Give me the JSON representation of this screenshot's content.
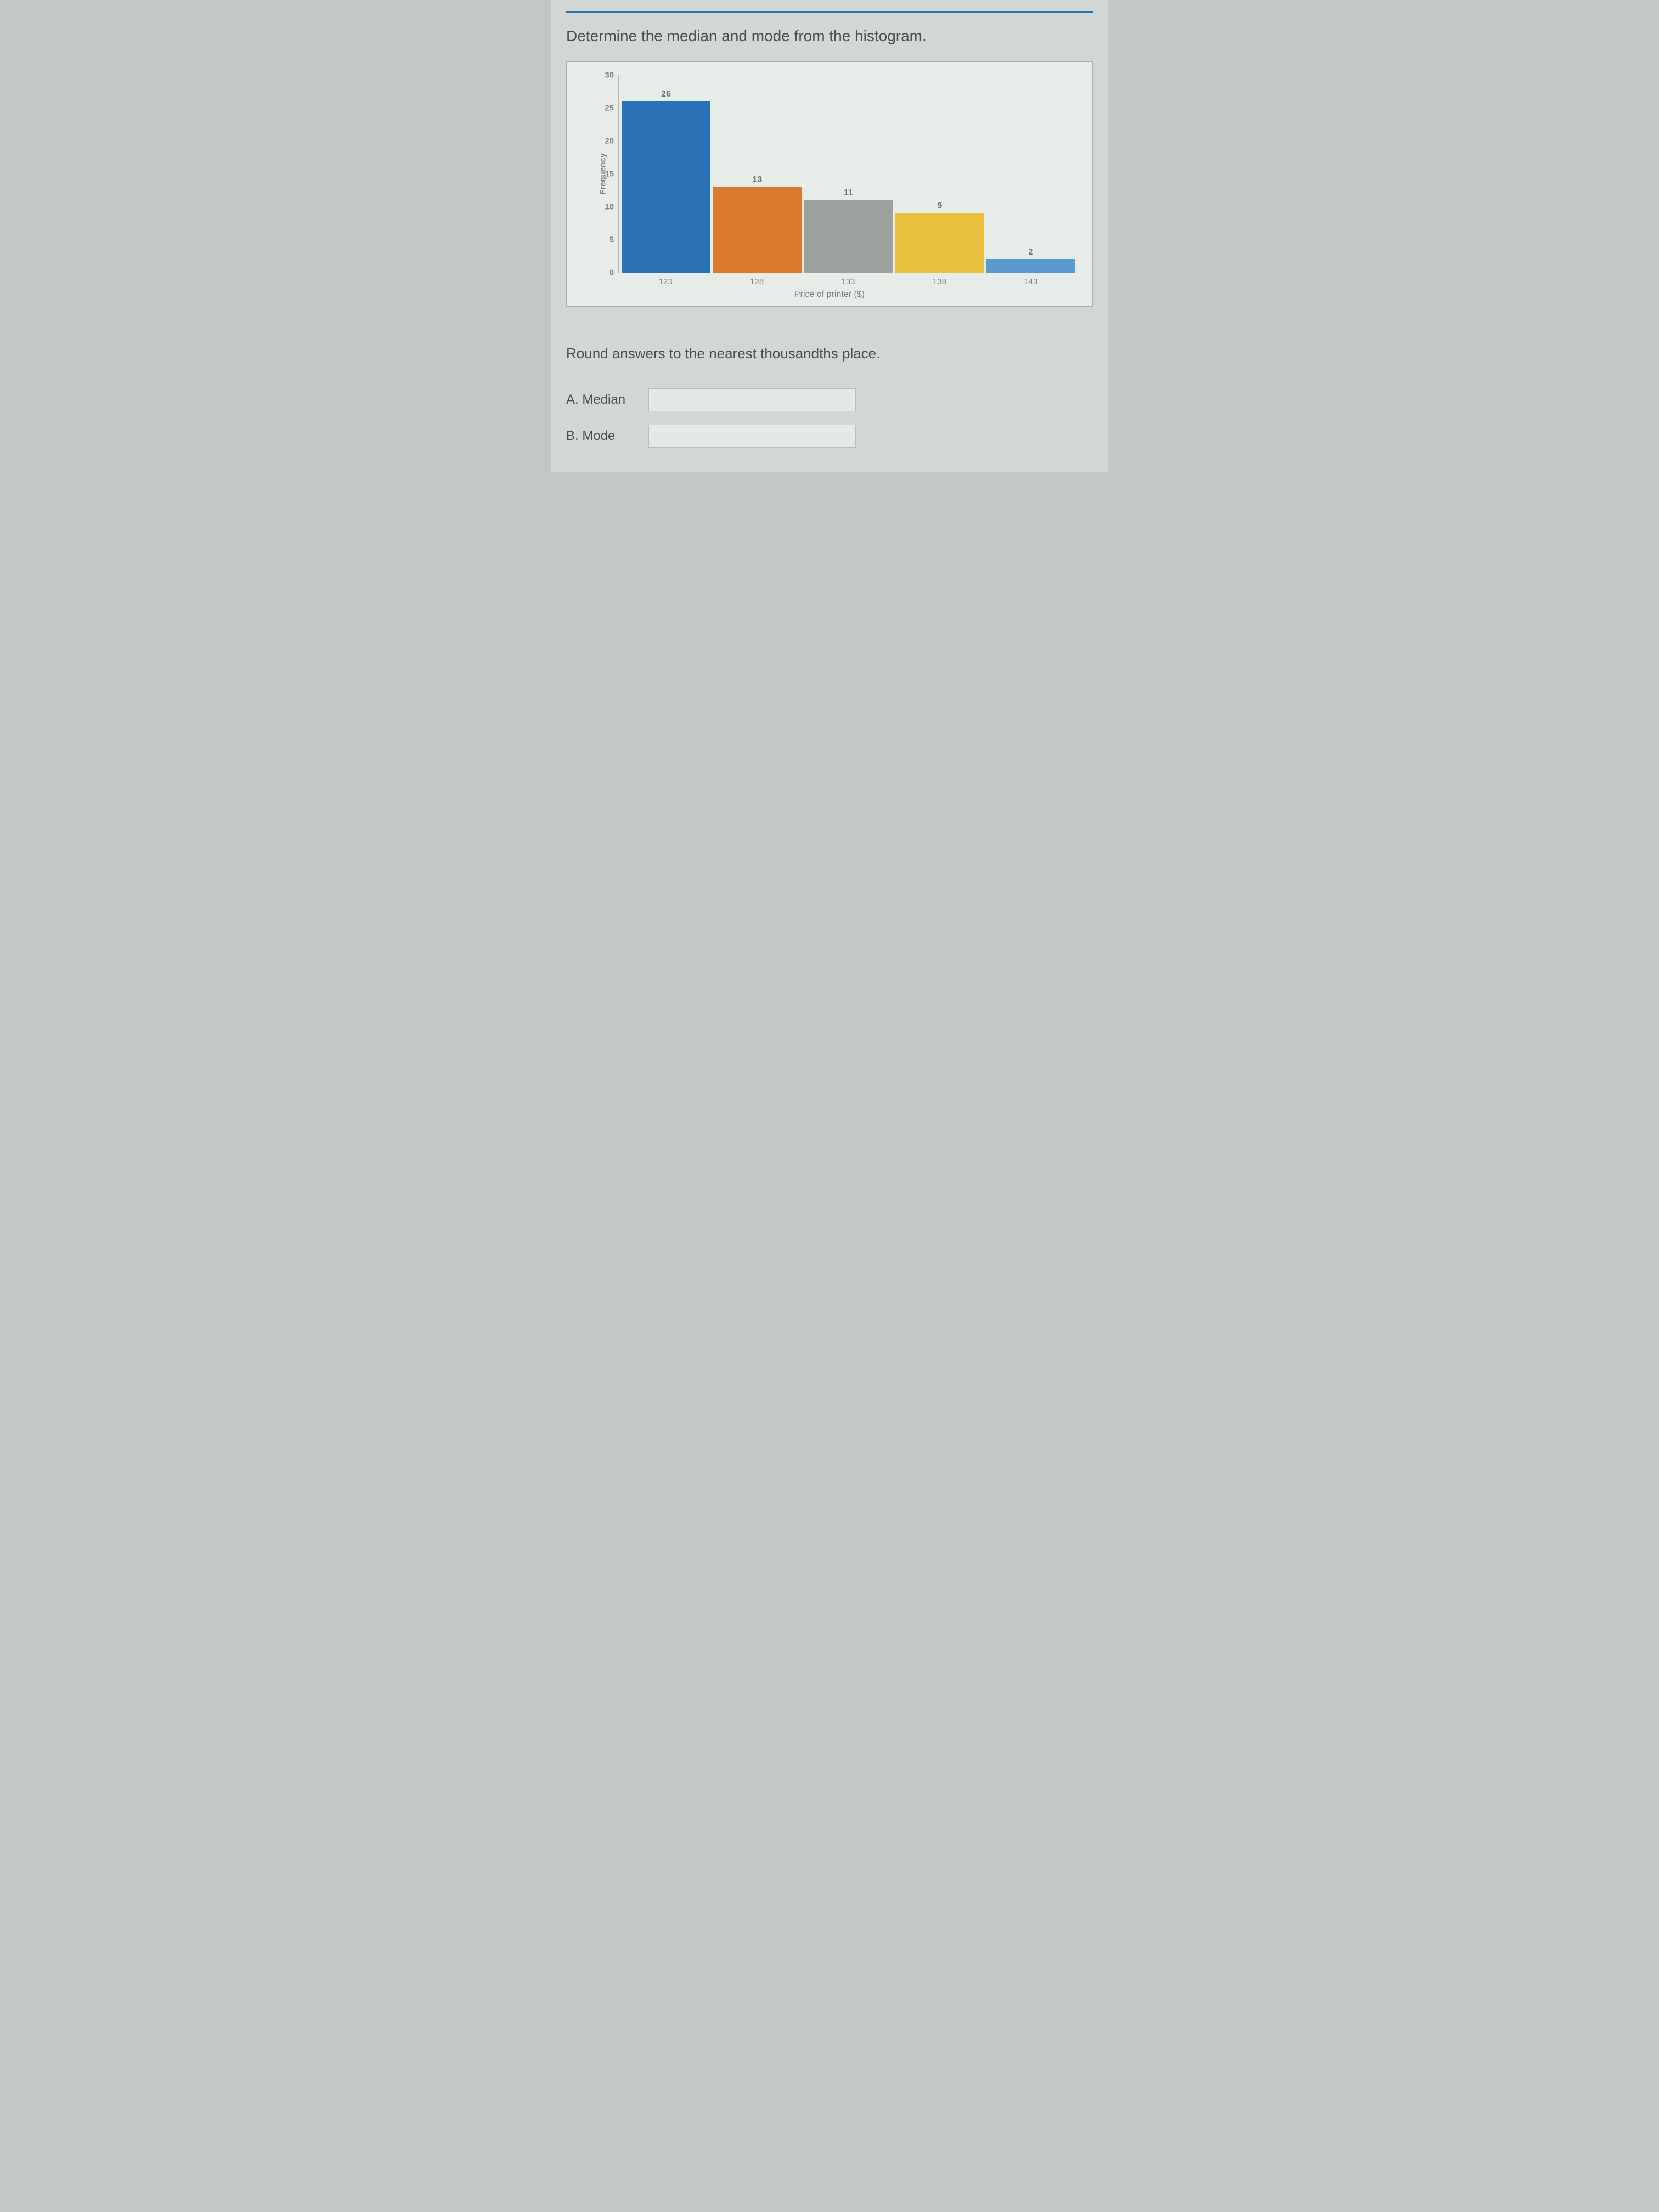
{
  "prompt": "Determine the median and mode from the histogram.",
  "sub_prompt": "Round answers to the nearest thousandths place.",
  "chart": {
    "type": "bar",
    "y_axis_label": "Frequency",
    "x_axis_label": "Price of printer ($)",
    "y_max": 30,
    "y_tick_step": 5,
    "y_ticks": [
      30,
      25,
      20,
      15,
      10,
      5,
      0
    ],
    "background_color": "#e8ece8",
    "bars": [
      {
        "category": "123",
        "value": 26,
        "color": "#2a72b5"
      },
      {
        "category": "128",
        "value": 13,
        "color": "#d97a2e"
      },
      {
        "category": "133",
        "value": 11,
        "color": "#9ca19d"
      },
      {
        "category": "138",
        "value": 9,
        "color": "#e9c23d"
      },
      {
        "category": "143",
        "value": 2,
        "color": "#5a9bcf"
      }
    ],
    "value_label_color": "#6e7470",
    "tick_label_color": "#7d8480",
    "axis_title_color": "#7d8480",
    "font_size_ticks": 15,
    "font_size_value": 16,
    "font_size_axis_title": 16
  },
  "answers": {
    "a_label": "A. Median",
    "b_label": "B. Mode",
    "a_value": "",
    "b_value": ""
  }
}
